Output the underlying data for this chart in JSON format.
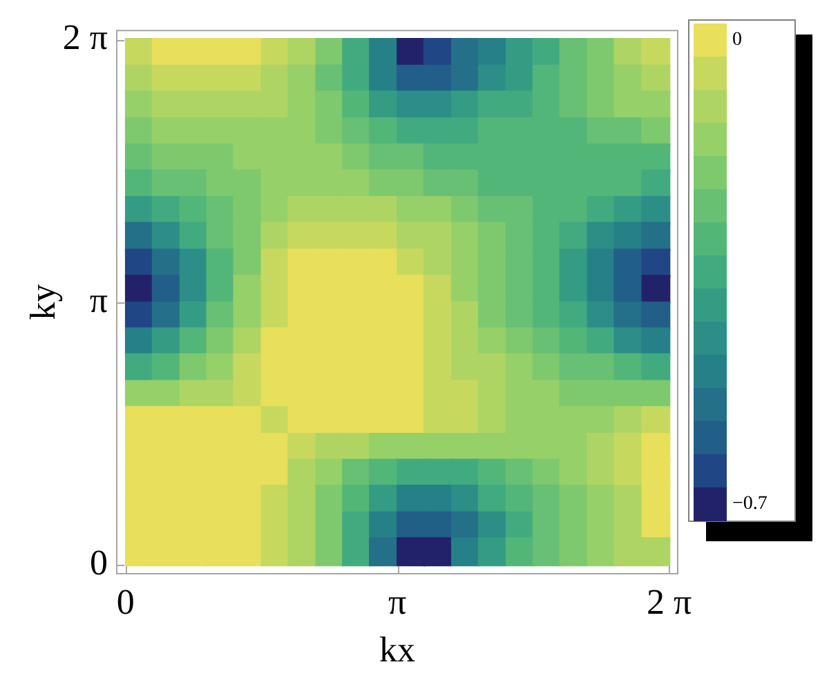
{
  "chart_data": {
    "type": "scatter",
    "xlabel": "kx",
    "ylabel": "ky",
    "marker": "square",
    "xlim": [
      -0.11,
      6.39
    ],
    "ylim": [
      -0.11,
      6.4
    ],
    "xticks": [
      0,
      {
        "value": 3.1416,
        "label": "π"
      },
      {
        "value": 6.2832,
        "label": "2 π"
      }
    ],
    "yticks": [
      0,
      {
        "value": 3.1416,
        "label": "π"
      },
      {
        "value": 6.2832,
        "label": "2 π"
      }
    ],
    "clim": [
      -0.725,
      0.025
    ],
    "cticks": [
      0,
      {
        "value": -0.7,
        "label": "−0.7"
      }
    ],
    "x": [
      0.16,
      0.47,
      0.79,
      1.1,
      1.41,
      1.73,
      2.04,
      2.36,
      2.67,
      2.98,
      3.3,
      3.61,
      3.93,
      4.24,
      4.56,
      4.87,
      5.18,
      5.5,
      5.81,
      6.13,
      0.16,
      0.47,
      0.79,
      1.1,
      1.41,
      1.73,
      2.04,
      2.36,
      2.67,
      2.98,
      3.3,
      3.61,
      3.93,
      4.24,
      4.56,
      4.87,
      5.18,
      5.5,
      5.81,
      6.13,
      0.16,
      0.47,
      0.79,
      1.1,
      1.41,
      1.73,
      2.04,
      2.36,
      2.67,
      2.98,
      3.3,
      3.61,
      3.93,
      4.24,
      4.56,
      4.87,
      5.18,
      5.5,
      5.81,
      6.13,
      0.16,
      0.47,
      0.79,
      1.1,
      1.41,
      1.73,
      2.04,
      2.36,
      2.67,
      2.98,
      3.3,
      3.61,
      3.93,
      4.24,
      4.56,
      4.87,
      5.18,
      5.5,
      5.81,
      6.13,
      0.16,
      0.47,
      0.79,
      1.1,
      1.41,
      1.73,
      2.04,
      2.36,
      2.67,
      2.98,
      3.3,
      3.61,
      3.93,
      4.24,
      4.56,
      4.87,
      5.18,
      5.5,
      5.81,
      6.13,
      0.16,
      0.47,
      0.79,
      1.1,
      1.41,
      1.73,
      2.04,
      2.36,
      2.67,
      2.98,
      3.3,
      3.61,
      3.93,
      4.24,
      4.56,
      4.87,
      5.18,
      5.5,
      5.81,
      6.13,
      0.16,
      0.47,
      0.79,
      1.1,
      1.41,
      1.73,
      2.04,
      2.36,
      2.67,
      2.98,
      3.3,
      3.61,
      3.93,
      4.24,
      4.56,
      4.87,
      5.18,
      5.5,
      5.81,
      6.13,
      0.16,
      0.47,
      0.79,
      1.1,
      1.41,
      1.73,
      2.04,
      2.36,
      2.67,
      2.98,
      3.3,
      3.61,
      3.93,
      4.24,
      4.56,
      4.87,
      5.18,
      5.5,
      5.81,
      6.13,
      0.16,
      0.47,
      0.79,
      1.1,
      1.41,
      1.73,
      2.04,
      2.36,
      2.67,
      2.98,
      3.3,
      3.61,
      3.93,
      4.24,
      4.56,
      4.87,
      5.18,
      5.5,
      5.81,
      6.13,
      0.16,
      0.47,
      0.79,
      1.1,
      1.41,
      1.73,
      2.04,
      2.36,
      2.67,
      2.98,
      3.3,
      3.61,
      3.93,
      4.24,
      4.56,
      4.87,
      5.18,
      5.5,
      5.81,
      6.13,
      0.16,
      0.47,
      0.79,
      1.1,
      1.41,
      1.73,
      2.04,
      2.36,
      2.67,
      2.98,
      3.3,
      3.61,
      3.93,
      4.24,
      4.56,
      4.87,
      5.18,
      5.5,
      5.81,
      6.13,
      0.16,
      0.47,
      0.79,
      1.1,
      1.41,
      1.73,
      2.04,
      2.36,
      2.67,
      2.98,
      3.3,
      3.61,
      3.93,
      4.24,
      4.56,
      4.87,
      5.18,
      5.5,
      5.81,
      6.13,
      0.16,
      0.47,
      0.79,
      1.1,
      1.41,
      1.73,
      2.04,
      2.36,
      2.67,
      2.98,
      3.3,
      3.61,
      3.93,
      4.24,
      4.56,
      4.87,
      5.18,
      5.5,
      5.81,
      6.13,
      0.16,
      0.47,
      0.79,
      1.1,
      1.41,
      1.73,
      2.04,
      2.36,
      2.67,
      2.98,
      3.3,
      3.61,
      3.93,
      4.24,
      4.56,
      4.87,
      5.18,
      5.5,
      5.81,
      6.13,
      0.16,
      0.47,
      0.79,
      1.1,
      1.41,
      1.73,
      2.04,
      2.36,
      2.67,
      2.98,
      3.3,
      3.61,
      3.93,
      4.24,
      4.56,
      4.87,
      5.18,
      5.5,
      5.81,
      6.13,
      0.16,
      0.47,
      0.79,
      1.1,
      1.41,
      1.73,
      2.04,
      2.36,
      2.67,
      2.98,
      3.3,
      3.61,
      3.93,
      4.24,
      4.56,
      4.87,
      5.18,
      5.5,
      5.81,
      6.13,
      0.16,
      0.47,
      0.79,
      1.1,
      1.41,
      1.73,
      2.04,
      2.36,
      2.67,
      2.98,
      3.3,
      3.61,
      3.93,
      4.24,
      4.56,
      4.87,
      5.18,
      5.5,
      5.81,
      6.13,
      0.16,
      0.47,
      0.79,
      1.1,
      1.41,
      1.73,
      2.04,
      2.36,
      2.67,
      2.98,
      3.3,
      3.61,
      3.93,
      4.24,
      4.56,
      4.87,
      5.18,
      5.5,
      5.81,
      6.13,
      0.16,
      0.47,
      0.79,
      1.1,
      1.41,
      1.73,
      2.04,
      2.36,
      2.67,
      2.98,
      3.3,
      3.61,
      3.93,
      4.24,
      4.56,
      4.87,
      5.18,
      5.5,
      5.81,
      6.13,
      0.16,
      0.47,
      0.79,
      1.1,
      1.41,
      1.73,
      2.04,
      2.36,
      2.67,
      2.98,
      3.3,
      3.61,
      3.93,
      4.24,
      4.56,
      4.87,
      5.18,
      5.5,
      5.81,
      6.13
    ],
    "values": [
      6.13,
      6.13,
      6.13,
      6.13,
      6.13,
      6.13,
      6.13,
      6.13,
      6.13,
      6.13,
      6.13,
      6.13,
      6.13,
      6.13,
      6.13,
      6.13,
      6.13,
      6.13,
      6.13,
      6.13,
      5.81,
      5.81,
      5.81,
      5.81,
      5.81,
      5.81,
      5.81,
      5.81,
      5.81,
      5.81,
      5.81,
      5.81,
      5.81,
      5.81,
      5.81,
      5.81,
      5.81,
      5.81,
      5.81,
      5.81,
      5.5,
      5.5,
      5.5,
      5.5,
      5.5,
      5.5,
      5.5,
      5.5,
      5.5,
      5.5,
      5.5,
      5.5,
      5.5,
      5.5,
      5.5,
      5.5,
      5.5,
      5.5,
      5.5,
      5.5,
      5.18,
      5.18,
      5.18,
      5.18,
      5.18,
      5.18,
      5.18,
      5.18,
      5.18,
      5.18,
      5.18,
      5.18,
      5.18,
      5.18,
      5.18,
      5.18,
      5.18,
      5.18,
      5.18,
      5.18,
      4.87,
      4.87,
      4.87,
      4.87,
      4.87,
      4.87,
      4.87,
      4.87,
      4.87,
      4.87,
      4.87,
      4.87,
      4.87,
      4.87,
      4.87,
      4.87,
      4.87,
      4.87,
      4.87,
      4.87,
      4.56,
      4.56,
      4.56,
      4.56,
      4.56,
      4.56,
      4.56,
      4.56,
      4.56,
      4.56,
      4.56,
      4.56,
      4.56,
      4.56,
      4.56,
      4.56,
      4.56,
      4.56,
      4.56,
      4.56,
      4.24,
      4.24,
      4.24,
      4.24,
      4.24,
      4.24,
      4.24,
      4.24,
      4.24,
      4.24,
      4.24,
      4.24,
      4.24,
      4.24,
      4.24,
      4.24,
      4.24,
      4.24,
      4.24,
      4.24,
      3.93,
      3.93,
      3.93,
      3.93,
      3.93,
      3.93,
      3.93,
      3.93,
      3.93,
      3.93,
      3.93,
      3.93,
      3.93,
      3.93,
      3.93,
      3.93,
      3.93,
      3.93,
      3.93,
      3.93,
      3.61,
      3.61,
      3.61,
      3.61,
      3.61,
      3.61,
      3.61,
      3.61,
      3.61,
      3.61,
      3.61,
      3.61,
      3.61,
      3.61,
      3.61,
      3.61,
      3.61,
      3.61,
      3.61,
      3.61,
      3.3,
      3.3,
      3.3,
      3.3,
      3.3,
      3.3,
      3.3,
      3.3,
      3.3,
      3.3,
      3.3,
      3.3,
      3.3,
      3.3,
      3.3,
      3.3,
      3.3,
      3.3,
      3.3,
      3.3,
      2.98,
      2.98,
      2.98,
      2.98,
      2.98,
      2.98,
      2.98,
      2.98,
      2.98,
      2.98,
      2.98,
      2.98,
      2.98,
      2.98,
      2.98,
      2.98,
      2.98,
      2.98,
      2.98,
      2.98,
      2.67,
      2.67,
      2.67,
      2.67,
      2.67,
      2.67,
      2.67,
      2.67,
      2.67,
      2.67,
      2.67,
      2.67,
      2.67,
      2.67,
      2.67,
      2.67,
      2.67,
      2.67,
      2.67,
      2.67,
      2.36,
      2.36,
      2.36,
      2.36,
      2.36,
      2.36,
      2.36,
      2.36,
      2.36,
      2.36,
      2.36,
      2.36,
      2.36,
      2.36,
      2.36,
      2.36,
      2.36,
      2.36,
      2.36,
      2.36,
      2.04,
      2.04,
      2.04,
      2.04,
      2.04,
      2.04,
      2.04,
      2.04,
      2.04,
      2.04,
      2.04,
      2.04,
      2.04,
      2.04,
      2.04,
      2.04,
      2.04,
      2.04,
      2.04,
      2.04,
      1.73,
      1.73,
      1.73,
      1.73,
      1.73,
      1.73,
      1.73,
      1.73,
      1.73,
      1.73,
      1.73,
      1.73,
      1.73,
      1.73,
      1.73,
      1.73,
      1.73,
      1.73,
      1.73,
      1.73,
      1.41,
      1.41,
      1.41,
      1.41,
      1.41,
      1.41,
      1.41,
      1.41,
      1.41,
      1.41,
      1.41,
      1.41,
      1.41,
      1.41,
      1.41,
      1.41,
      1.41,
      1.41,
      1.41,
      1.41,
      1.1,
      1.1,
      1.1,
      1.1,
      1.1,
      1.1,
      1.1,
      1.1,
      1.1,
      1.1,
      1.1,
      1.1,
      1.1,
      1.1,
      1.1,
      1.1,
      1.1,
      1.1,
      1.1,
      1.1,
      0.79,
      0.79,
      0.79,
      0.79,
      0.79,
      0.79,
      0.79,
      0.79,
      0.79,
      0.79,
      0.79,
      0.79,
      0.79,
      0.79,
      0.79,
      0.79,
      0.79,
      0.79,
      0.79,
      0.79,
      0.47,
      0.47,
      0.47,
      0.47,
      0.47,
      0.47,
      0.47,
      0.47,
      0.47,
      0.47,
      0.47,
      0.47,
      0.47,
      0.47,
      0.47,
      0.47,
      0.47,
      0.47,
      0.47,
      0.47,
      0.16,
      0.16,
      0.16,
      0.16,
      0.16,
      0.16,
      0.16,
      0.16,
      0.16,
      0.16,
      0.16,
      0.16,
      0.16,
      0.16,
      0.16,
      0.16,
      0.16,
      0.16,
      0.16,
      0.16
    ],
    "cvalues": [
      -0.05,
      0,
      0,
      0,
      0,
      -0.05,
      -0.1,
      -0.2,
      -0.35,
      -0.5,
      -0.7,
      -0.65,
      -0.55,
      -0.5,
      -0.4,
      -0.35,
      -0.25,
      -0.2,
      -0.1,
      -0.05,
      -0.1,
      -0.05,
      -0.05,
      -0.05,
      -0.05,
      -0.1,
      -0.15,
      -0.25,
      -0.35,
      -0.5,
      -0.6,
      -0.6,
      -0.55,
      -0.45,
      -0.4,
      -0.3,
      -0.25,
      -0.2,
      -0.15,
      -0.1,
      -0.15,
      -0.1,
      -0.1,
      -0.1,
      -0.1,
      -0.1,
      -0.15,
      -0.2,
      -0.3,
      -0.4,
      -0.45,
      -0.45,
      -0.4,
      -0.35,
      -0.35,
      -0.3,
      -0.25,
      -0.2,
      -0.15,
      -0.15,
      -0.2,
      -0.15,
      -0.15,
      -0.15,
      -0.15,
      -0.15,
      -0.15,
      -0.2,
      -0.25,
      -0.3,
      -0.35,
      -0.35,
      -0.35,
      -0.3,
      -0.3,
      -0.3,
      -0.3,
      -0.25,
      -0.25,
      -0.2,
      -0.25,
      -0.2,
      -0.2,
      -0.2,
      -0.15,
      -0.15,
      -0.15,
      -0.15,
      -0.2,
      -0.25,
      -0.25,
      -0.3,
      -0.3,
      -0.3,
      -0.3,
      -0.3,
      -0.3,
      -0.3,
      -0.3,
      -0.3,
      -0.3,
      -0.25,
      -0.25,
      -0.2,
      -0.2,
      -0.15,
      -0.15,
      -0.15,
      -0.15,
      -0.2,
      -0.2,
      -0.25,
      -0.25,
      -0.3,
      -0.3,
      -0.3,
      -0.3,
      -0.3,
      -0.3,
      -0.35,
      -0.4,
      -0.35,
      -0.3,
      -0.25,
      -0.2,
      -0.15,
      -0.1,
      -0.1,
      -0.1,
      -0.1,
      -0.15,
      -0.15,
      -0.2,
      -0.25,
      -0.25,
      -0.3,
      -0.3,
      -0.35,
      -0.4,
      -0.45,
      -0.55,
      -0.45,
      -0.35,
      -0.25,
      -0.2,
      -0.1,
      -0.05,
      -0.05,
      -0.05,
      -0.05,
      -0.1,
      -0.1,
      -0.15,
      -0.2,
      -0.25,
      -0.3,
      -0.35,
      -0.45,
      -0.5,
      -0.55,
      -0.65,
      -0.55,
      -0.45,
      -0.3,
      -0.2,
      -0.05,
      0,
      0,
      0,
      0,
      -0.05,
      -0.1,
      -0.15,
      -0.2,
      -0.25,
      -0.3,
      -0.4,
      -0.5,
      -0.6,
      -0.65,
      -0.7,
      -0.6,
      -0.45,
      -0.3,
      -0.15,
      -0.05,
      0,
      0,
      0,
      0,
      0,
      -0.05,
      -0.15,
      -0.2,
      -0.25,
      -0.3,
      -0.4,
      -0.5,
      -0.6,
      -0.7,
      -0.65,
      -0.55,
      -0.4,
      -0.25,
      -0.15,
      -0.05,
      0,
      0,
      0,
      0,
      0,
      -0.05,
      -0.1,
      -0.2,
      -0.25,
      -0.3,
      -0.35,
      -0.45,
      -0.55,
      -0.6,
      -0.5,
      -0.4,
      -0.3,
      -0.2,
      -0.1,
      0,
      0,
      0,
      0,
      0,
      0,
      -0.05,
      -0.1,
      -0.15,
      -0.2,
      -0.25,
      -0.3,
      -0.35,
      -0.45,
      -0.5,
      -0.35,
      -0.3,
      -0.2,
      -0.15,
      -0.05,
      0,
      0,
      0,
      0,
      0,
      0,
      -0.05,
      -0.1,
      -0.1,
      -0.15,
      -0.2,
      -0.25,
      -0.25,
      -0.3,
      -0.35,
      -0.15,
      -0.15,
      -0.1,
      -0.1,
      -0.05,
      0,
      0,
      0,
      0,
      0,
      0,
      -0.05,
      -0.05,
      -0.1,
      -0.15,
      -0.15,
      -0.2,
      -0.2,
      -0.2,
      -0.2,
      0,
      0,
      0,
      0,
      0,
      -0.05,
      0,
      0,
      0,
      0,
      0,
      -0.05,
      -0.05,
      -0.1,
      -0.15,
      -0.15,
      -0.15,
      -0.15,
      -0.1,
      -0.05,
      0,
      0,
      0,
      0,
      0,
      0,
      -0.05,
      -0.1,
      -0.1,
      -0.15,
      -0.15,
      -0.15,
      -0.15,
      -0.15,
      -0.15,
      -0.15,
      -0.15,
      -0.1,
      -0.05,
      0,
      0,
      0,
      0,
      0,
      0,
      0,
      -0.1,
      -0.15,
      -0.25,
      -0.3,
      -0.35,
      -0.35,
      -0.35,
      -0.3,
      -0.25,
      -0.2,
      -0.15,
      -0.1,
      -0.05,
      0,
      0,
      0,
      0,
      0,
      0,
      -0.05,
      -0.1,
      -0.2,
      -0.3,
      -0.4,
      -0.5,
      -0.5,
      -0.45,
      -0.35,
      -0.3,
      -0.25,
      -0.2,
      -0.15,
      -0.1,
      0,
      0,
      0,
      0,
      0,
      0,
      -0.05,
      -0.1,
      -0.2,
      -0.35,
      -0.5,
      -0.6,
      -0.6,
      -0.55,
      -0.45,
      -0.35,
      -0.25,
      -0.2,
      -0.15,
      -0.1,
      0,
      0,
      0,
      0,
      0,
      0,
      -0.05,
      -0.1,
      -0.2,
      -0.35,
      -0.55,
      -0.7,
      -0.7,
      -0.5,
      -0.4,
      -0.3,
      -0.25,
      -0.2,
      -0.15,
      -0.1,
      -0.1
    ]
  }
}
